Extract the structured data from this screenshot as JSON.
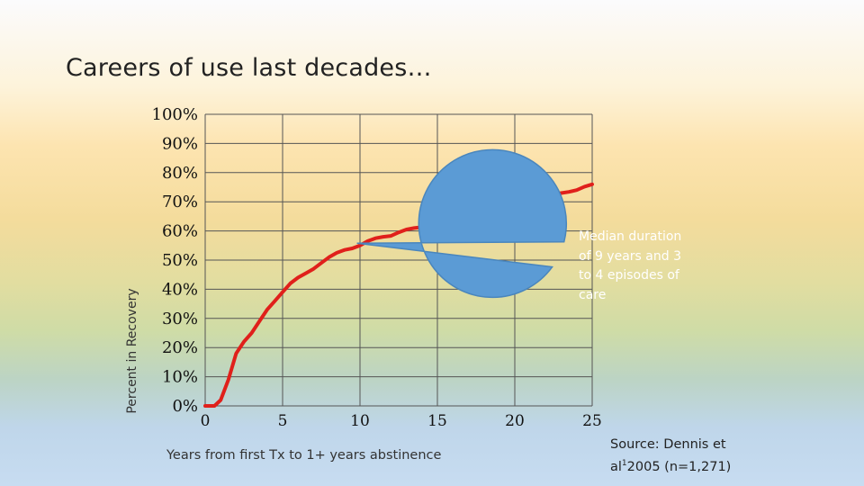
{
  "title": "Careers of use last decades…",
  "source": {
    "line1": "Source: Dennis et",
    "line2_prefix": "al",
    "line2_sup": "1",
    "line2_rest": "2005 (n=1,271)"
  },
  "callout": {
    "text": "Median duration of 9 years and 3 to 4 episodes of care",
    "color": "#5b9bd5"
  },
  "chart_data": {
    "type": "line",
    "title": "",
    "xlabel": "Years from first Tx to 1+ years abstinence",
    "ylabel": "Percent in Recovery",
    "xlim": [
      0,
      25
    ],
    "ylim": [
      0,
      100
    ],
    "grid": true,
    "xticks": [
      0,
      5,
      10,
      15,
      20,
      25
    ],
    "xtick_labels": [
      "0",
      "5",
      "10",
      "15",
      "20",
      "25"
    ],
    "yticks": [
      0,
      10,
      20,
      30,
      40,
      50,
      60,
      70,
      80,
      90,
      100
    ],
    "ytick_labels": [
      "0%",
      "10%",
      "20%",
      "30%",
      "40%",
      "50%",
      "60%",
      "70%",
      "80%",
      "90%",
      "100%"
    ],
    "series": [
      {
        "color": "#e0201b",
        "x": [
          0,
          0.6,
          1.0,
          1.5,
          2.0,
          2.5,
          3.0,
          3.5,
          4.0,
          4.5,
          5.0,
          5.5,
          6.0,
          6.5,
          7.0,
          7.5,
          8.0,
          8.5,
          9.0,
          9.5,
          10.0,
          10.5,
          11.0,
          11.5,
          12.0,
          12.5,
          13.0,
          13.5,
          14.0,
          14.5,
          15.0,
          15.5,
          16.0,
          16.5,
          17.0,
          17.5,
          18.0,
          18.5,
          19.0,
          19.5,
          20.0,
          20.5,
          21.0,
          21.5,
          22.0,
          22.5,
          23.0,
          23.5,
          24.0,
          24.5,
          25.0
        ],
        "y": [
          0,
          0,
          2,
          9,
          18,
          22,
          25,
          29,
          33,
          36,
          39,
          42,
          44,
          45.5,
          47,
          49,
          51,
          52.5,
          53.5,
          54,
          55,
          56.5,
          57.5,
          58,
          58.3,
          59.5,
          60.5,
          61,
          61.3,
          62,
          63,
          64,
          65,
          65.4,
          65.8,
          66.6,
          67.5,
          68.3,
          68.6,
          69.2,
          70,
          70.6,
          71,
          71.4,
          72,
          72.6,
          73,
          73.4,
          74,
          75.2,
          76
        ]
      }
    ]
  }
}
